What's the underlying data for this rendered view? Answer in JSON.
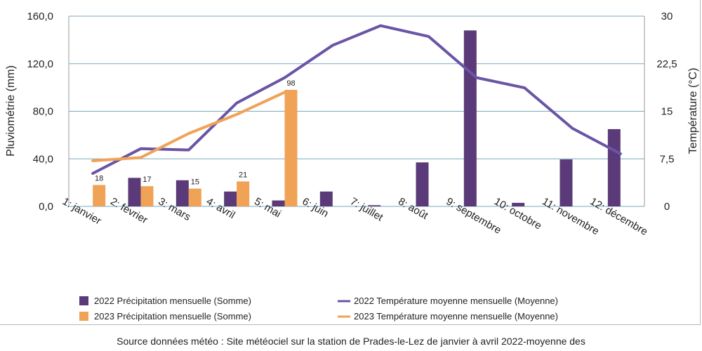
{
  "chart_data": {
    "type": "bar",
    "categories": [
      "1: janvier",
      "2: février",
      "3: mars",
      "4: avril",
      "5: mai",
      "6: juin",
      "7: juillet",
      "8: août",
      "9: septembre",
      "10: octobre",
      "11: novembre",
      "12: décembre"
    ],
    "ylabel": "Pluviométrie (mm)",
    "y2label": "Température (°C)",
    "ylim": [
      0,
      160
    ],
    "yticks": [
      "0,0",
      "40,0",
      "80,0",
      "120,0",
      "160,0"
    ],
    "y2lim": [
      0,
      30
    ],
    "y2ticks": [
      "0",
      "7,5",
      "15",
      "22,5",
      "30"
    ],
    "grid": true,
    "series": [
      {
        "name": "2022 Précipitation mensuelle (Somme)",
        "kind": "bar",
        "axis": "left",
        "color": "#5b3a79",
        "values": [
          null,
          24,
          22,
          12.5,
          5,
          12.5,
          1,
          37,
          148,
          3,
          39.5,
          65
        ]
      },
      {
        "name": "2023 Précipitation mensuelle (Somme)",
        "kind": "bar",
        "axis": "left",
        "color": "#f0a257",
        "values": [
          18,
          17,
          15,
          21,
          98,
          null,
          null,
          null,
          null,
          null,
          null,
          null
        ],
        "data_labels": [
          "18",
          "17",
          "15",
          "21",
          "98",
          null,
          null,
          null,
          null,
          null,
          null,
          null
        ]
      },
      {
        "name": "2022 Température moyenne mensuelle (Moyenne)",
        "kind": "line",
        "axis": "right",
        "color": "#6a54a5",
        "values": [
          5.2,
          9.1,
          8.9,
          16.3,
          20.3,
          25.4,
          28.5,
          26.8,
          20.3,
          18.7,
          12.3,
          8.3
        ]
      },
      {
        "name": "2023 Température moyenne mensuelle (Moyenne)",
        "kind": "line",
        "axis": "right",
        "color": "#f0a257",
        "values": [
          7.2,
          7.7,
          11.5,
          14.5,
          18.0,
          null,
          null,
          null,
          null,
          null,
          null,
          null
        ]
      }
    ],
    "legend_position": "bottom"
  },
  "caption": "Source données météo : Site météociel sur la station de Prades-le-Lez de janvier à avril 2022-moyenne des"
}
